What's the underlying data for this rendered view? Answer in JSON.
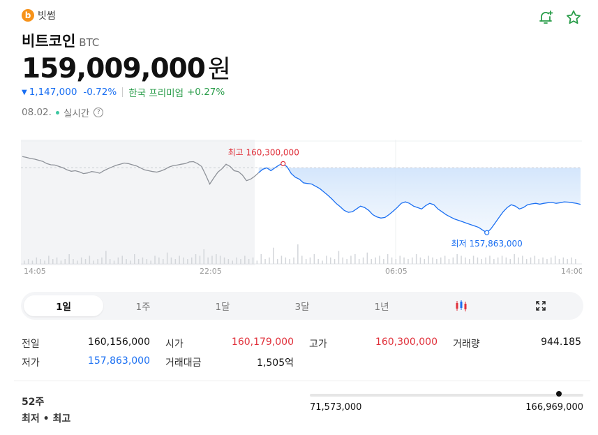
{
  "exchange": {
    "name": "빗썸",
    "logo_glyph": "b"
  },
  "coin": {
    "name": "비트코인",
    "symbol": "BTC"
  },
  "price": {
    "value": "159,009,000",
    "unit": "원"
  },
  "change": {
    "arrow": "▼",
    "amount": "1,147,000",
    "percent": "-0.72%",
    "premium_label": "한국 프리미엄",
    "premium_value": "+0.27%"
  },
  "time": {
    "date": "08.02.",
    "realtime": "실시간",
    "help_glyph": "?"
  },
  "colors": {
    "down": "#1a6ff2",
    "up": "#e0303a",
    "premium": "#2a9d4a",
    "icon": "#2a9d4a"
  },
  "icons": {
    "alarm": "bell-plus-icon",
    "favorite": "star-icon",
    "chart_type": "candlestick-icon",
    "expand": "expand-icon"
  },
  "chart_data": {
    "type": "line",
    "x_ticks": [
      "14:05",
      "22:05",
      "06:05",
      "14:00"
    ],
    "high_label": "최고 160,300,000",
    "low_label": "최저 157,863,000",
    "high": 160300000,
    "low": 157863000,
    "prev_close": 160156000,
    "ylim": [
      157450000,
      160900000
    ],
    "series": [
      {
        "values": [
          160550000,
          160520000,
          160480000,
          160460000,
          160420000,
          160380000,
          160300000,
          160260000,
          160250000,
          160200000,
          160150000,
          160080000,
          160030000,
          160050000,
          160010000,
          159950000,
          159970000,
          160020000,
          160000000,
          159960000,
          160050000,
          160120000,
          160180000,
          160240000,
          160280000,
          160320000,
          160300000,
          160260000,
          160220000,
          160150000,
          160080000,
          160050000,
          160020000,
          160000000,
          160040000,
          160100000,
          160180000,
          160230000,
          160250000,
          160280000,
          160300000,
          160360000,
          160370000,
          160300000,
          160200000,
          159900000,
          159580000,
          159800000,
          160000000,
          160120000,
          160280000,
          160200000,
          160050000,
          160020000,
          159900000,
          159700000,
          159750000,
          159850000,
          159980000,
          160100000,
          160150000,
          160050000,
          160150000,
          160250000,
          160300000,
          160180000,
          159950000,
          159820000,
          159750000,
          159620000,
          159600000,
          159580000,
          159500000,
          159420000,
          159300000,
          159180000,
          159050000,
          158900000,
          158780000,
          158650000,
          158580000,
          158600000,
          158700000,
          158800000,
          158750000,
          158650000,
          158500000,
          158420000,
          158380000,
          158400000,
          158500000,
          158620000,
          158750000,
          158900000,
          158950000,
          158900000,
          158800000,
          158750000,
          158700000,
          158820000,
          158900000,
          158850000,
          158700000,
          158600000,
          158500000,
          158420000,
          158350000,
          158300000,
          158250000,
          158200000,
          158150000,
          158100000,
          158050000,
          157950000,
          157863000,
          158000000,
          158200000,
          158400000,
          158600000,
          158750000,
          158850000,
          158800000,
          158700000,
          158750000,
          158850000,
          158880000,
          158900000,
          158870000,
          158900000,
          158920000,
          158930000,
          158900000,
          158920000,
          158950000,
          158940000,
          158920000,
          158900000,
          158860000
        ]
      }
    ],
    "volume": [
      2,
      3,
      2,
      4,
      3,
      2,
      5,
      3,
      4,
      2,
      3,
      6,
      3,
      2,
      4,
      3,
      5,
      2,
      3,
      4,
      8,
      3,
      2,
      4,
      5,
      3,
      2,
      6,
      3,
      4,
      3,
      2,
      5,
      4,
      3,
      7,
      4,
      3,
      5,
      4,
      3,
      4,
      6,
      5,
      9,
      4,
      5,
      6,
      5,
      4,
      3,
      2,
      4,
      3,
      5,
      3,
      4,
      2,
      6,
      3,
      4,
      10,
      3,
      5,
      4,
      3,
      4,
      12,
      5,
      3,
      4,
      6,
      3,
      2,
      5,
      4,
      3,
      8,
      4,
      3,
      5,
      6,
      3,
      4,
      7,
      3,
      4,
      5,
      3,
      6,
      4,
      3,
      5,
      4,
      3,
      4,
      6,
      4,
      3,
      5,
      4,
      3,
      4,
      5,
      3,
      4,
      6,
      5,
      4,
      3,
      5,
      4,
      3,
      4,
      5,
      3,
      4,
      5,
      4,
      3,
      6,
      4,
      5,
      3,
      4,
      5,
      3,
      4,
      3,
      4,
      5,
      3,
      4,
      3,
      4,
      3
    ]
  },
  "periods": [
    {
      "label": "1일",
      "active": true
    },
    {
      "label": "1주",
      "active": false
    },
    {
      "label": "1달",
      "active": false
    },
    {
      "label": "3달",
      "active": false
    },
    {
      "label": "1년",
      "active": false
    }
  ],
  "stats": {
    "prev_label": "전일",
    "prev_value": "160,156,000",
    "open_label": "시가",
    "open_value": "160,179,000",
    "high_label": "고가",
    "high_value": "160,300,000",
    "volume_label": "거래량",
    "volume_value": "944.185",
    "low_label": "저가",
    "low_value": "157,863,000",
    "turnover_label": "거래대금",
    "turnover_value": "1,505억"
  },
  "week52": {
    "title": "52주",
    "subtitle": "최저 • 최고",
    "min": "71,573,000",
    "max": "166,969,000",
    "position_fraction": 0.91
  }
}
